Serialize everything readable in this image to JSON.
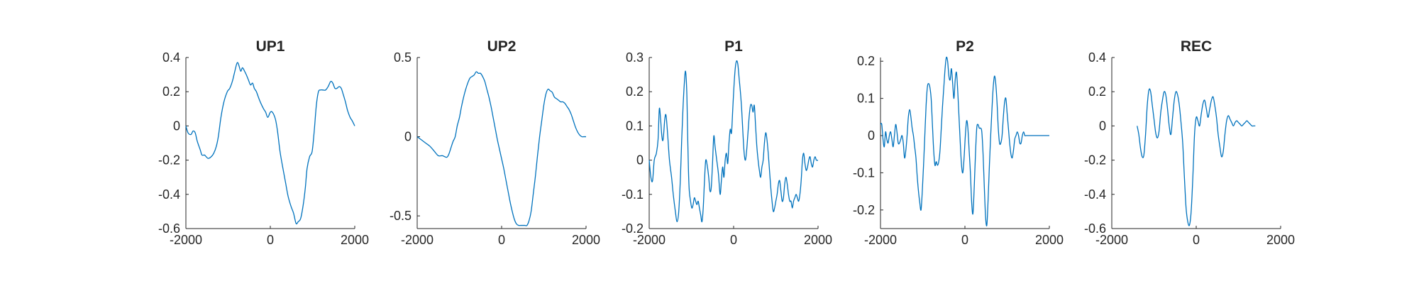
{
  "chart_data": [
    {
      "type": "line",
      "title": "UP1",
      "xlim": [
        -2000,
        2000
      ],
      "ylim": [
        -0.6,
        0.4
      ],
      "xticks": [
        -2000,
        0,
        2000
      ],
      "xtick_labels": [
        "-2000",
        "0",
        "2000"
      ],
      "yticks": [
        -0.6,
        -0.4,
        -0.2,
        0,
        0.2,
        0.4
      ],
      "ytick_labels": [
        "-0.6",
        "-0.4",
        "-0.2",
        "0",
        "0.2",
        "0.4"
      ],
      "grid": false,
      "series_color": "#0072BD",
      "x": [
        -2000,
        -1950,
        -1880,
        -1830,
        -1780,
        -1730,
        -1660,
        -1620,
        -1560,
        -1520,
        -1470,
        -1400,
        -1340,
        -1280,
        -1230,
        -1170,
        -1100,
        -1020,
        -960,
        -900,
        -850,
        -800,
        -770,
        -740,
        -700,
        -660,
        -610,
        -570,
        -520,
        -470,
        -420,
        -380,
        -330,
        -270,
        -220,
        -160,
        -110,
        -60,
        0,
        50,
        120,
        170,
        230,
        300,
        360,
        420,
        490,
        550,
        610,
        660,
        720,
        780,
        830,
        870,
        930,
        990,
        1040,
        1090,
        1140,
        1190,
        1250,
        1310,
        1370,
        1430,
        1480,
        1530,
        1580,
        1630,
        1680,
        1720,
        1780,
        1830,
        1890,
        1940,
        2000
      ],
      "y": [
        0.0,
        -0.04,
        -0.05,
        -0.03,
        -0.04,
        -0.09,
        -0.14,
        -0.17,
        -0.17,
        -0.18,
        -0.19,
        -0.18,
        -0.16,
        -0.12,
        -0.06,
        0.05,
        0.14,
        0.2,
        0.22,
        0.26,
        0.31,
        0.36,
        0.37,
        0.35,
        0.32,
        0.34,
        0.32,
        0.3,
        0.27,
        0.24,
        0.25,
        0.22,
        0.2,
        0.16,
        0.13,
        0.1,
        0.08,
        0.05,
        0.08,
        0.08,
        0.04,
        -0.03,
        -0.15,
        -0.25,
        -0.33,
        -0.41,
        -0.47,
        -0.51,
        -0.57,
        -0.56,
        -0.54,
        -0.46,
        -0.36,
        -0.25,
        -0.18,
        -0.15,
        -0.03,
        0.12,
        0.2,
        0.21,
        0.21,
        0.21,
        0.23,
        0.26,
        0.25,
        0.22,
        0.22,
        0.23,
        0.22,
        0.19,
        0.14,
        0.09,
        0.05,
        0.03,
        0.0
      ]
    },
    {
      "type": "line",
      "title": "UP2",
      "xlim": [
        -2000,
        2000
      ],
      "ylim": [
        -0.58,
        0.5
      ],
      "xticks": [
        -2000,
        0,
        2000
      ],
      "xtick_labels": [
        "-2000",
        "0",
        "2000"
      ],
      "yticks": [
        -0.5,
        0,
        0.5
      ],
      "ytick_labels": [
        "-0.5",
        "0",
        "0.5"
      ],
      "grid": false,
      "series_color": "#0072BD",
      "x": [
        -2000,
        -1900,
        -1800,
        -1700,
        -1600,
        -1500,
        -1400,
        -1300,
        -1250,
        -1200,
        -1150,
        -1100,
        -1050,
        -1000,
        -950,
        -900,
        -850,
        -800,
        -750,
        -700,
        -650,
        -600,
        -550,
        -500,
        -450,
        -400,
        -350,
        -300,
        -250,
        -200,
        -150,
        -100,
        -50,
        0,
        50,
        100,
        150,
        200,
        250,
        300,
        350,
        400,
        450,
        500,
        550,
        600,
        650,
        700,
        750,
        800,
        850,
        900,
        950,
        1000,
        1050,
        1100,
        1150,
        1200,
        1250,
        1300,
        1350,
        1400,
        1450,
        1500,
        1550,
        1600,
        1650,
        1700,
        1750,
        1800,
        1850,
        1900,
        1950,
        2000
      ],
      "y": [
        0.0,
        -0.02,
        -0.04,
        -0.06,
        -0.09,
        -0.12,
        -0.12,
        -0.13,
        -0.11,
        -0.07,
        -0.03,
        0.0,
        0.07,
        0.12,
        0.19,
        0.25,
        0.3,
        0.34,
        0.37,
        0.38,
        0.39,
        0.41,
        0.4,
        0.4,
        0.38,
        0.35,
        0.3,
        0.25,
        0.19,
        0.12,
        0.05,
        -0.02,
        -0.08,
        -0.14,
        -0.2,
        -0.27,
        -0.34,
        -0.41,
        -0.47,
        -0.52,
        -0.55,
        -0.56,
        -0.56,
        -0.56,
        -0.56,
        -0.56,
        -0.53,
        -0.47,
        -0.36,
        -0.25,
        -0.12,
        0.0,
        0.1,
        0.2,
        0.27,
        0.3,
        0.29,
        0.28,
        0.25,
        0.24,
        0.23,
        0.22,
        0.22,
        0.21,
        0.19,
        0.17,
        0.14,
        0.1,
        0.06,
        0.03,
        0.01,
        0.0,
        0.0,
        0.0
      ]
    },
    {
      "type": "line",
      "title": "P1",
      "xlim": [
        -2000,
        2000
      ],
      "ylim": [
        -0.2,
        0.3
      ],
      "xticks": [
        -2000,
        0,
        2000
      ],
      "xtick_labels": [
        "-2000",
        "0",
        "2000"
      ],
      "yticks": [
        -0.2,
        -0.1,
        0,
        0.1,
        0.2,
        0.3
      ],
      "ytick_labels": [
        "-0.2",
        "-0.1",
        "0",
        "0.1",
        "0.2",
        "0.3"
      ],
      "grid": false,
      "series_color": "#0072BD",
      "x": [
        -2000,
        -1960,
        -1920,
        -1880,
        -1830,
        -1790,
        -1760,
        -1730,
        -1700,
        -1670,
        -1630,
        -1600,
        -1560,
        -1520,
        -1470,
        -1430,
        -1380,
        -1340,
        -1300,
        -1260,
        -1230,
        -1200,
        -1170,
        -1140,
        -1110,
        -1090,
        -1070,
        -1050,
        -1020,
        -990,
        -960,
        -930,
        -900,
        -870,
        -840,
        -810,
        -780,
        -750,
        -720,
        -690,
        -660,
        -620,
        -590,
        -560,
        -530,
        -500,
        -470,
        -440,
        -400,
        -360,
        -320,
        -290,
        -260,
        -230,
        -200,
        -170,
        -140,
        -110,
        -80,
        -50,
        -20,
        10,
        40,
        70,
        100,
        130,
        160,
        190,
        220,
        250,
        280,
        310,
        340,
        370,
        400,
        430,
        460,
        490,
        520,
        550,
        580,
        610,
        640,
        670,
        700,
        730,
        760,
        790,
        820,
        850,
        880,
        910,
        940,
        970,
        1000,
        1030,
        1060,
        1090,
        1120,
        1150,
        1180,
        1210,
        1240,
        1270,
        1300,
        1330,
        1360,
        1390,
        1420,
        1450,
        1480,
        1510,
        1540,
        1570,
        1600,
        1630,
        1660,
        1690,
        1720,
        1750,
        1780,
        1810,
        1840,
        1870,
        1900,
        1930,
        1960,
        2000
      ],
      "y": [
        0.0,
        -0.05,
        -0.06,
        0.0,
        0.02,
        0.06,
        0.15,
        0.12,
        0.07,
        0.06,
        0.12,
        0.13,
        0.07,
        0.0,
        -0.05,
        -0.1,
        -0.15,
        -0.18,
        -0.15,
        -0.05,
        0.06,
        0.15,
        0.22,
        0.26,
        0.2,
        0.08,
        -0.03,
        -0.09,
        -0.12,
        -0.14,
        -0.13,
        -0.11,
        -0.12,
        -0.13,
        -0.12,
        -0.14,
        -0.16,
        -0.18,
        -0.14,
        -0.06,
        0.0,
        -0.02,
        -0.05,
        -0.09,
        -0.08,
        -0.01,
        0.07,
        0.04,
        0.0,
        -0.04,
        -0.1,
        -0.06,
        -0.02,
        -0.05,
        0.0,
        0.02,
        -0.01,
        0.05,
        0.09,
        0.08,
        0.15,
        0.22,
        0.27,
        0.29,
        0.28,
        0.24,
        0.2,
        0.15,
        0.08,
        0.02,
        0.0,
        0.03,
        0.08,
        0.13,
        0.16,
        0.16,
        0.14,
        0.16,
        0.1,
        0.04,
        0.0,
        -0.03,
        -0.05,
        -0.02,
        0.0,
        0.05,
        0.08,
        0.06,
        0.02,
        -0.03,
        -0.08,
        -0.12,
        -0.15,
        -0.14,
        -0.12,
        -0.1,
        -0.07,
        -0.06,
        -0.09,
        -0.12,
        -0.11,
        -0.07,
        -0.05,
        -0.07,
        -0.1,
        -0.12,
        -0.12,
        -0.14,
        -0.12,
        -0.11,
        -0.1,
        -0.11,
        -0.12,
        -0.1,
        -0.06,
        0.0,
        0.02,
        -0.01,
        -0.03,
        -0.02,
        0.0,
        0.01,
        -0.01,
        -0.02,
        0.0,
        0.01,
        0.0,
        0.0
      ]
    },
    {
      "type": "line",
      "title": "P2",
      "xlim": [
        -2000,
        2000
      ],
      "ylim": [
        -0.25,
        0.21
      ],
      "xticks": [
        -2000,
        0,
        2000
      ],
      "xtick_labels": [
        "-2000",
        "0",
        "2000"
      ],
      "yticks": [
        -0.2,
        -0.1,
        0,
        0.1,
        0.2
      ],
      "ytick_labels": [
        "-0.2",
        "-0.1",
        "0",
        "0.1",
        "0.2"
      ],
      "grid": false,
      "series_color": "#0072BD",
      "x": [
        -2000,
        -1970,
        -1940,
        -1910,
        -1880,
        -1850,
        -1820,
        -1790,
        -1760,
        -1730,
        -1700,
        -1670,
        -1640,
        -1610,
        -1580,
        -1550,
        -1520,
        -1490,
        -1460,
        -1430,
        -1400,
        -1370,
        -1340,
        -1310,
        -1280,
        -1250,
        -1220,
        -1190,
        -1160,
        -1130,
        -1100,
        -1070,
        -1040,
        -1010,
        -980,
        -950,
        -920,
        -890,
        -860,
        -830,
        -800,
        -770,
        -740,
        -710,
        -680,
        -650,
        -620,
        -590,
        -560,
        -530,
        -500,
        -470,
        -440,
        -410,
        -380,
        -350,
        -320,
        -290,
        -260,
        -230,
        -200,
        -170,
        -140,
        -110,
        -80,
        -50,
        -20,
        10,
        40,
        70,
        100,
        130,
        160,
        190,
        220,
        250,
        280,
        310,
        340,
        370,
        400,
        430,
        460,
        490,
        520,
        550,
        580,
        610,
        640,
        670,
        700,
        730,
        760,
        790,
        820,
        850,
        880,
        910,
        940,
        970,
        1000,
        1030,
        1060,
        1090,
        1120,
        1150,
        1180,
        1210,
        1240,
        1270,
        1300,
        1330,
        1360,
        1390,
        1420,
        1450,
        1480,
        1510,
        1540,
        1570,
        1600,
        1630,
        1660,
        1690,
        1720,
        1750,
        1780,
        1810,
        1840,
        1870,
        1900,
        1930,
        1960,
        2000
      ],
      "y": [
        0.03,
        0.03,
        -0.01,
        -0.03,
        0.01,
        -0.01,
        -0.02,
        0.0,
        0.01,
        -0.01,
        -0.03,
        0.0,
        0.03,
        0.01,
        -0.02,
        -0.02,
        -0.01,
        0.0,
        -0.02,
        -0.06,
        -0.04,
        0.0,
        0.05,
        0.07,
        0.05,
        0.02,
        0.0,
        -0.03,
        -0.06,
        -0.11,
        -0.15,
        -0.18,
        -0.2,
        -0.15,
        -0.08,
        0.0,
        0.08,
        0.13,
        0.14,
        0.13,
        0.1,
        0.03,
        -0.04,
        -0.08,
        -0.07,
        -0.08,
        -0.07,
        -0.04,
        0.02,
        0.08,
        0.13,
        0.18,
        0.21,
        0.2,
        0.16,
        0.15,
        0.18,
        0.14,
        0.1,
        0.15,
        0.17,
        0.12,
        0.05,
        -0.02,
        -0.08,
        -0.1,
        -0.06,
        0.0,
        0.04,
        0.02,
        -0.04,
        -0.1,
        -0.18,
        -0.21,
        -0.14,
        -0.05,
        0.02,
        0.03,
        0.02,
        0.02,
        0.01,
        -0.05,
        -0.14,
        -0.22,
        -0.24,
        -0.17,
        -0.08,
        0.0,
        0.07,
        0.13,
        0.16,
        0.14,
        0.09,
        0.02,
        -0.02,
        -0.02,
        0.0,
        0.05,
        0.09,
        0.1,
        0.06,
        0.02,
        -0.02,
        -0.05,
        -0.06,
        -0.04,
        -0.01,
        0.0,
        0.01,
        0.0,
        -0.02,
        -0.02,
        0.0,
        0.01,
        0.0,
        0.0,
        0.0,
        0.0,
        0.0,
        0.0,
        0.0,
        0.0,
        0.0,
        0.0,
        0.0,
        0.0,
        0.0,
        0.0,
        0.0,
        0.0,
        0.0,
        0.0,
        0.0,
        0.0
      ]
    },
    {
      "type": "line",
      "title": "REC",
      "xlim": [
        -2000,
        2000
      ],
      "ylim": [
        -0.6,
        0.4
      ],
      "xticks": [
        -2000,
        0,
        2000
      ],
      "xtick_labels": [
        "-2000",
        "0",
        "2000"
      ],
      "yticks": [
        -0.6,
        -0.4,
        -0.2,
        0,
        0.2,
        0.4
      ],
      "ytick_labels": [
        "-0.6",
        "-0.4",
        "-0.2",
        "0",
        "0.2",
        "0.4"
      ],
      "grid": false,
      "series_color": "#0072BD",
      "x": [
        -1400,
        -1360,
        -1320,
        -1280,
        -1240,
        -1200,
        -1160,
        -1120,
        -1080,
        -1040,
        -1000,
        -960,
        -920,
        -880,
        -840,
        -800,
        -760,
        -720,
        -680,
        -640,
        -600,
        -560,
        -520,
        -480,
        -440,
        -400,
        -360,
        -320,
        -280,
        -240,
        -200,
        -160,
        -120,
        -80,
        -40,
        0,
        40,
        80,
        120,
        160,
        200,
        240,
        280,
        320,
        360,
        400,
        440,
        480,
        520,
        560,
        600,
        640,
        680,
        720,
        760,
        800,
        840,
        880,
        920,
        960,
        1000,
        1040,
        1080,
        1120,
        1160,
        1200,
        1240,
        1280,
        1320,
        1360,
        1400
      ],
      "y": [
        0.0,
        -0.05,
        -0.13,
        -0.18,
        -0.17,
        -0.05,
        0.12,
        0.21,
        0.2,
        0.12,
        0.04,
        -0.04,
        -0.07,
        -0.03,
        0.08,
        0.15,
        0.2,
        0.18,
        0.1,
        0.0,
        -0.05,
        0.05,
        0.15,
        0.2,
        0.18,
        0.12,
        0.02,
        -0.1,
        -0.3,
        -0.48,
        -0.56,
        -0.58,
        -0.5,
        -0.3,
        -0.05,
        0.05,
        0.03,
        0.0,
        0.07,
        0.13,
        0.15,
        0.1,
        0.05,
        0.1,
        0.15,
        0.17,
        0.12,
        0.05,
        -0.05,
        -0.12,
        -0.18,
        -0.15,
        -0.05,
        0.03,
        0.06,
        0.04,
        0.02,
        0.0,
        0.02,
        0.03,
        0.02,
        0.01,
        0.0,
        0.01,
        0.02,
        0.03,
        0.02,
        0.01,
        0.0,
        0.0,
        0.0
      ]
    }
  ]
}
